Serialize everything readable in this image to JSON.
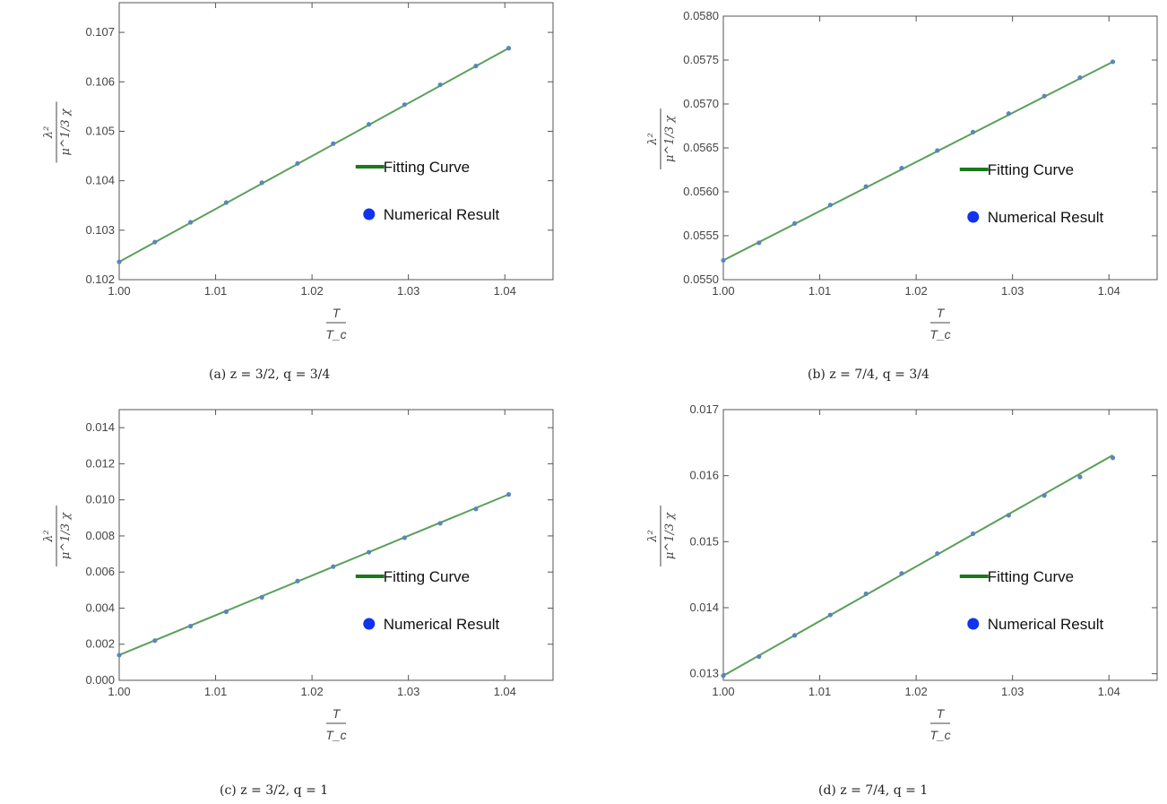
{
  "chart_data": [
    {
      "type": "line",
      "caption": "(a) z = 3/2, q = 3/4",
      "ylabel_num": "λ²",
      "ylabel_den": "μ^1/3 χ",
      "xlabel_num": "T",
      "xlabel_den": "T_c",
      "xlim": [
        1.0,
        1.045
      ],
      "ylim": [
        0.102,
        0.1076
      ],
      "x_ticks": [
        "1.00",
        "1.01",
        "1.02",
        "1.03",
        "1.04"
      ],
      "x_tick_values": [
        1.0,
        1.01,
        1.02,
        1.03,
        1.04
      ],
      "y_ticks": [
        "0.102",
        "0.103",
        "0.104",
        "0.105",
        "0.106",
        "0.107"
      ],
      "y_tick_values": [
        0.102,
        0.103,
        0.104,
        0.105,
        0.106,
        0.107
      ],
      "legend": {
        "line": "Fitting Curve",
        "points": "Numerical Result"
      },
      "fit": {
        "x": [
          1.0,
          1.0404
        ],
        "y": [
          0.10236,
          0.10668
        ]
      },
      "points": {
        "x": [
          1.0,
          1.0037,
          1.0074,
          1.0111,
          1.0148,
          1.0185,
          1.0222,
          1.0259,
          1.0296,
          1.0333,
          1.037,
          1.0404
        ],
        "y": [
          0.10236,
          0.10276,
          0.10316,
          0.10356,
          0.10396,
          0.10435,
          0.10475,
          0.10514,
          0.10554,
          0.10594,
          0.10632,
          0.10668
        ]
      }
    },
    {
      "type": "line",
      "caption": "(b) z = 7/4, q = 3/4",
      "ylabel_num": "λ²",
      "ylabel_den": "μ^1/3 χ",
      "xlabel_num": "T",
      "xlabel_den": "T_c",
      "xlim": [
        1.0,
        1.045
      ],
      "ylim": [
        0.055,
        0.058
      ],
      "x_ticks": [
        "1.00",
        "1.01",
        "1.02",
        "1.03",
        "1.04"
      ],
      "x_tick_values": [
        1.0,
        1.01,
        1.02,
        1.03,
        1.04
      ],
      "y_ticks": [
        "0.0550",
        "0.0555",
        "0.0560",
        "0.0565",
        "0.0570",
        "0.0575",
        "0.0580"
      ],
      "y_tick_values": [
        0.055,
        0.0555,
        0.056,
        0.0565,
        0.057,
        0.0575,
        0.058
      ],
      "legend": {
        "line": "Fitting Curve",
        "points": "Numerical Result"
      },
      "fit": {
        "x": [
          1.0,
          1.0404
        ],
        "y": [
          0.05522,
          0.05748
        ]
      },
      "points": {
        "x": [
          1.0,
          1.0037,
          1.0074,
          1.0111,
          1.0148,
          1.0185,
          1.0222,
          1.0259,
          1.0296,
          1.0333,
          1.037,
          1.0404
        ],
        "y": [
          0.05522,
          0.05542,
          0.05564,
          0.05585,
          0.05606,
          0.05627,
          0.05647,
          0.05668,
          0.05689,
          0.05709,
          0.0573,
          0.05748
        ]
      }
    },
    {
      "type": "line",
      "caption": "(c) z = 3/2, q = 1",
      "ylabel_num": "λ²",
      "ylabel_den": "μ^1/3 χ",
      "xlabel_num": "T",
      "xlabel_den": "T_c",
      "xlim": [
        1.0,
        1.045
      ],
      "ylim": [
        0.0,
        0.015
      ],
      "x_ticks": [
        "1.00",
        "1.01",
        "1.02",
        "1.03",
        "1.04"
      ],
      "x_tick_values": [
        1.0,
        1.01,
        1.02,
        1.03,
        1.04
      ],
      "y_ticks": [
        "0.000",
        "0.002",
        "0.004",
        "0.006",
        "0.008",
        "0.010",
        "0.012",
        "0.014"
      ],
      "y_tick_values": [
        0.0,
        0.002,
        0.004,
        0.006,
        0.008,
        0.01,
        0.012,
        0.014
      ],
      "legend": {
        "line": "Fitting Curve",
        "points": "Numerical Result"
      },
      "fit": {
        "x": [
          1.0,
          1.0404
        ],
        "y": [
          0.0014,
          0.0103
        ]
      },
      "points": {
        "x": [
          1.0,
          1.0037,
          1.0074,
          1.0111,
          1.0148,
          1.0185,
          1.0222,
          1.0259,
          1.0296,
          1.0333,
          1.037,
          1.0404
        ],
        "y": [
          0.0014,
          0.0022,
          0.003,
          0.0038,
          0.0046,
          0.0055,
          0.0063,
          0.0071,
          0.0079,
          0.0087,
          0.0095,
          0.0103
        ]
      }
    },
    {
      "type": "line",
      "caption": "(d) z = 7/4, q = 1",
      "ylabel_num": "λ²",
      "ylabel_den": "μ^1/3 χ",
      "xlabel_num": "T",
      "xlabel_den": "T_c",
      "xlim": [
        1.0,
        1.045
      ],
      "ylim": [
        0.0129,
        0.017
      ],
      "x_ticks": [
        "1.00",
        "1.01",
        "1.02",
        "1.03",
        "1.04"
      ],
      "x_tick_values": [
        1.0,
        1.01,
        1.02,
        1.03,
        1.04
      ],
      "y_ticks": [
        "0.013",
        "0.014",
        "0.015",
        "0.016",
        "0.017"
      ],
      "y_tick_values": [
        0.013,
        0.014,
        0.015,
        0.016,
        0.017
      ],
      "legend": {
        "line": "Fitting Curve",
        "points": "Numerical Result"
      },
      "fit": {
        "x": [
          1.0,
          1.0404
        ],
        "y": [
          0.01297,
          0.01631
        ]
      },
      "points": {
        "x": [
          1.0,
          1.0037,
          1.0074,
          1.0111,
          1.0148,
          1.0185,
          1.0222,
          1.0259,
          1.0296,
          1.0333,
          1.037,
          1.0404
        ],
        "y": [
          0.01297,
          0.01326,
          0.01358,
          0.01389,
          0.01421,
          0.01452,
          0.01482,
          0.01512,
          0.0154,
          0.0157,
          0.01598,
          0.01627
        ]
      }
    }
  ]
}
